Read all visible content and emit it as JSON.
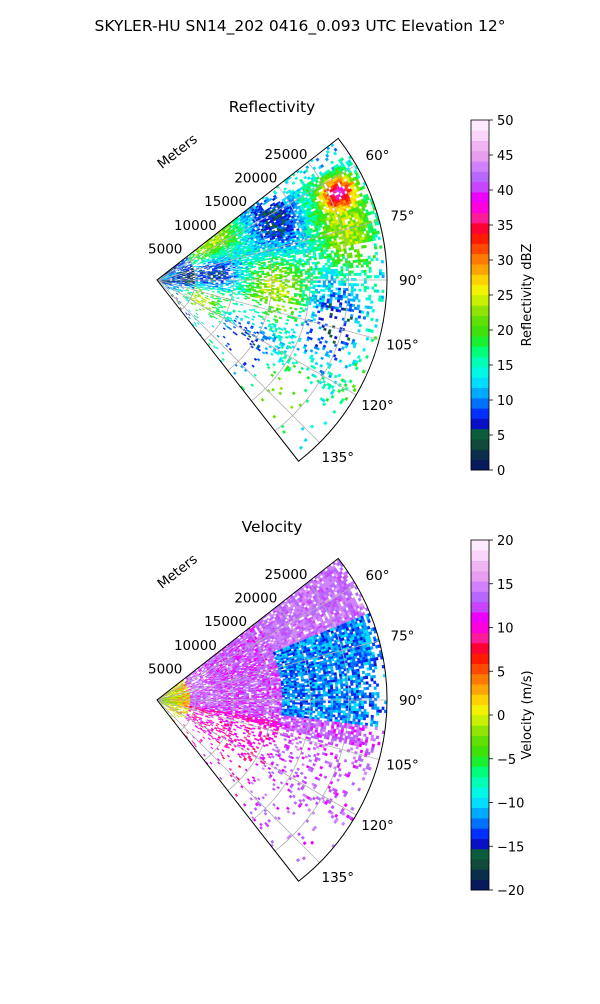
{
  "figure_title": "SKYLER-HU  SN14_202  0416_0.093 UTC Elevation 12°",
  "chart_data": [
    {
      "type": "heatmap",
      "projection": "polar-sector",
      "title": "Reflectivity",
      "range_label": "Meters",
      "range_ticks": [
        "5000",
        "10000",
        "15000",
        "20000",
        "25000"
      ],
      "range_tick_values": [
        5000,
        10000,
        15000,
        20000,
        25000
      ],
      "range_max": 30000,
      "azimuth_range_deg": [
        52,
        142
      ],
      "azimuth_tick_labels": [
        "60°",
        "75°",
        "90°",
        "105°",
        "120°",
        "135°"
      ],
      "azimuth_tick_values": [
        60,
        75,
        90,
        105,
        120,
        135
      ],
      "grid": true,
      "colorbar": {
        "label": "Reflectivity dBZ",
        "vmin": 0,
        "vmax": 50,
        "ticks": [
          "0",
          "5",
          "10",
          "15",
          "20",
          "25",
          "30",
          "35",
          "40",
          "45",
          "50"
        ],
        "tick_values": [
          0,
          5,
          10,
          15,
          20,
          25,
          30,
          35,
          40,
          45,
          50
        ],
        "colors": [
          "#081a5c",
          "#0a2e4a",
          "#0f4a3a",
          "#0b5e3b",
          "#0a10c8",
          "#0030ff",
          "#0070ff",
          "#00aaff",
          "#00ddff",
          "#00f8e6",
          "#00ffb4",
          "#00ff78",
          "#18f030",
          "#40e00a",
          "#60e000",
          "#90e400",
          "#c8f000",
          "#f2f200",
          "#ffd200",
          "#ffa400",
          "#ff7a00",
          "#ff4800",
          "#ff1a00",
          "#ff0033",
          "#ff1a9a",
          "#ff00dd",
          "#ee00ff",
          "#c844ff",
          "#b766ff",
          "#d080ff",
          "#e79ef0",
          "#f0b4f2",
          "#fad4fa",
          "#fdeafd"
        ]
      },
      "summary_values_dbz": {
        "typical": [
          15,
          22
        ],
        "max_cell": 35,
        "max_cell_location": {
          "azimuth_deg": 64,
          "range_m": 25000
        }
      }
    },
    {
      "type": "heatmap",
      "projection": "polar-sector",
      "title": "Velocity",
      "range_label": "Meters",
      "range_ticks": [
        "5000",
        "10000",
        "15000",
        "20000",
        "25000"
      ],
      "range_tick_values": [
        5000,
        10000,
        15000,
        20000,
        25000
      ],
      "range_max": 30000,
      "azimuth_range_deg": [
        52,
        142
      ],
      "azimuth_tick_labels": [
        "60°",
        "75°",
        "90°",
        "105°",
        "120°",
        "135°"
      ],
      "azimuth_tick_values": [
        60,
        75,
        90,
        105,
        120,
        135
      ],
      "grid": true,
      "colorbar": {
        "label": "Velocity (m/s)",
        "vmin": -20,
        "vmax": 20,
        "ticks": [
          "−20",
          "−15",
          "−10",
          "−5",
          "0",
          "5",
          "10",
          "15",
          "20"
        ],
        "tick_values": [
          -20,
          -15,
          -10,
          -5,
          0,
          5,
          10,
          15,
          20
        ],
        "colors": [
          "#081a5c",
          "#0a2e4a",
          "#0f4a3a",
          "#0b5e3b",
          "#0a10c8",
          "#0030ff",
          "#0070ff",
          "#00aaff",
          "#00ddff",
          "#00f8e6",
          "#00ffb4",
          "#00ff78",
          "#18f030",
          "#40e00a",
          "#60e000",
          "#90e400",
          "#c8f000",
          "#f2f200",
          "#ffd200",
          "#ffa400",
          "#ff7a00",
          "#ff4800",
          "#ff1a00",
          "#ff0033",
          "#ff1a9a",
          "#ff00dd",
          "#ee00ff",
          "#c844ff",
          "#b766ff",
          "#d080ff",
          "#e79ef0",
          "#f0b4f2",
          "#fad4fa",
          "#fdeafd"
        ]
      },
      "summary_values_ms": {
        "near_range": [
          5,
          12
        ],
        "far_range_south": [
          -15,
          -8
        ],
        "far_range_north": [
          12,
          16
        ]
      }
    }
  ]
}
